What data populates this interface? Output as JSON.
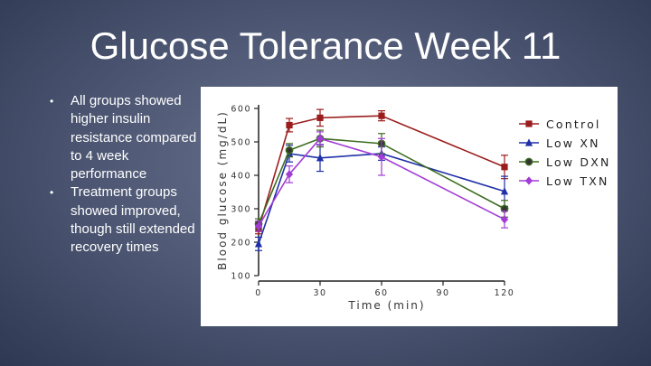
{
  "slide": {
    "title": "Glucose Tolerance Week 11",
    "bullets": [
      "All groups showed higher insulin resistance compared to 4 week performance",
      "Treatment groups showed improved, though still extended recovery times"
    ]
  },
  "chart_data": {
    "type": "line",
    "title": "",
    "xlabel": "Time (min)",
    "ylabel": "Blood glucose (mg/dL)",
    "xlim": [
      0,
      120
    ],
    "ylim": [
      100,
      600
    ],
    "xticks": [
      0,
      30,
      60,
      90,
      120
    ],
    "yticks": [
      100,
      200,
      300,
      400,
      500,
      600
    ],
    "grid": false,
    "legend_position": "right",
    "x": [
      0,
      15,
      30,
      60,
      120
    ],
    "series": [
      {
        "name": "Control",
        "color": "#9b1c1c",
        "marker": "square",
        "values": [
          240,
          550,
          572,
          578,
          425
        ],
        "errors": [
          15,
          20,
          25,
          15,
          35
        ]
      },
      {
        "name": "Low XN",
        "color": "#1f2fa8",
        "marker": "triangle",
        "values": [
          195,
          465,
          452,
          465,
          352
        ],
        "errors": [
          20,
          25,
          40,
          20,
          45
        ]
      },
      {
        "name": "Low DXN",
        "color": "#3c6b1f",
        "marker": "circle",
        "values": [
          255,
          475,
          510,
          495,
          300
        ],
        "errors": [
          15,
          20,
          25,
          30,
          25
        ]
      },
      {
        "name": "Low TXN",
        "color": "#a23cd6",
        "marker": "diamond",
        "values": [
          248,
          403,
          510,
          455,
          268
        ],
        "errors": [
          15,
          25,
          20,
          55,
          25
        ]
      }
    ]
  }
}
